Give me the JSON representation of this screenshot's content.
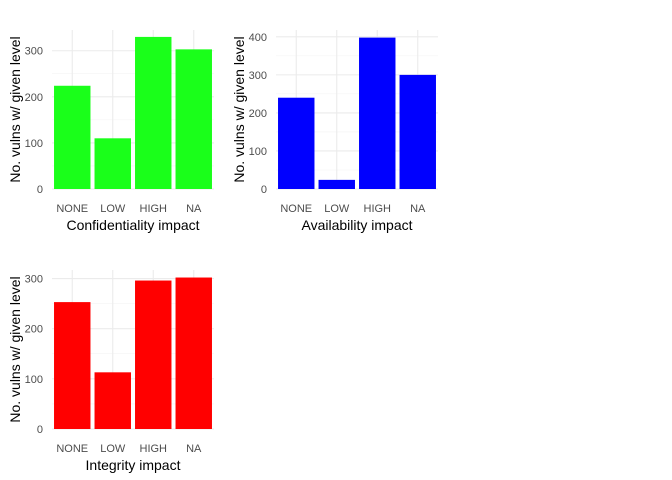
{
  "chart_data": [
    {
      "type": "bar",
      "categories": [
        "NONE",
        "LOW",
        "HIGH",
        "NA"
      ],
      "values": [
        224,
        110,
        330,
        303
      ],
      "xlabel": "Confidentiality impact",
      "ylabel": "No. vulns w/ given level",
      "ylim": [
        0,
        345
      ],
      "yticks": [
        0,
        100,
        200,
        300
      ],
      "color": "#1aff1a",
      "grid": true
    },
    {
      "type": "bar",
      "categories": [
        "NONE",
        "LOW",
        "HIGH",
        "NA"
      ],
      "values": [
        240,
        24,
        398,
        300
      ],
      "xlabel": "Availability impact",
      "ylabel": "No. vulns w/ given level",
      "ylim": [
        0,
        418
      ],
      "yticks": [
        0,
        100,
        200,
        300,
        400
      ],
      "color": "#0000ff",
      "grid": true
    },
    {
      "type": "bar",
      "categories": [
        "NONE",
        "LOW",
        "HIGH",
        "NA"
      ],
      "values": [
        253,
        113,
        296,
        302
      ],
      "xlabel": "Integrity impact",
      "ylabel": "No. vulns w/ given level",
      "ylim": [
        0,
        317
      ],
      "yticks": [
        0,
        100,
        200,
        300
      ],
      "color": "#ff0000",
      "grid": true
    }
  ]
}
